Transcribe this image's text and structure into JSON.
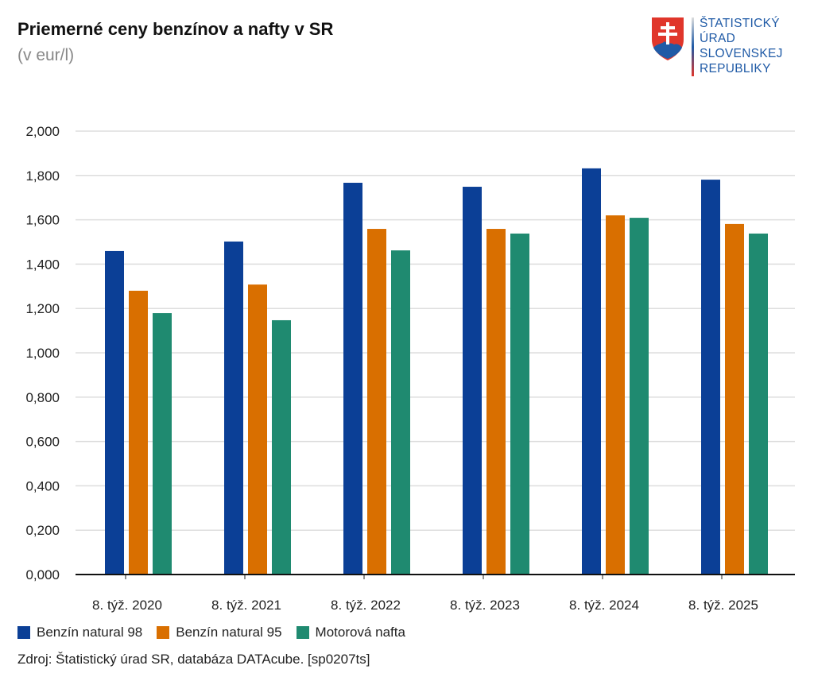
{
  "chart_data": {
    "type": "bar",
    "title": "Priemerné ceny benzínov a nafty v SR",
    "subtitle": "(v eur/l)",
    "categories": [
      "8. týž. 2020",
      "8. týž. 2021",
      "8. týž. 2022",
      "8. týž. 2023",
      "8. týž. 2024",
      "8. týž. 2025"
    ],
    "series": [
      {
        "name": "Benzín natural 98",
        "color": "#0b3f96",
        "values": [
          1.459,
          1.502,
          1.767,
          1.749,
          1.832,
          1.781
        ]
      },
      {
        "name": "Benzín natural 95",
        "color": "#d96f00",
        "values": [
          1.28,
          1.308,
          1.559,
          1.559,
          1.62,
          1.581
        ]
      },
      {
        "name": "Motorová nafta",
        "color": "#1f8a70",
        "values": [
          1.179,
          1.147,
          1.462,
          1.538,
          1.609,
          1.538
        ]
      }
    ],
    "ylim": [
      0,
      2
    ],
    "yticks": [
      "0,000",
      "0,200",
      "0,400",
      "0,600",
      "0,800",
      "1,000",
      "1,200",
      "1,400",
      "1,600",
      "1,800",
      "2,000"
    ],
    "grid": true,
    "legend_position": "bottom-left",
    "xlabel": "",
    "ylabel": ""
  },
  "logo": {
    "lines": [
      "ŠTATISTICKÝ",
      "ÚRAD",
      "SLOVENSKEJ",
      "REPUBLIKY"
    ]
  },
  "source": "Zdroj: Štatistický úrad SR, databáza DATAcube. [sp0207ts]"
}
